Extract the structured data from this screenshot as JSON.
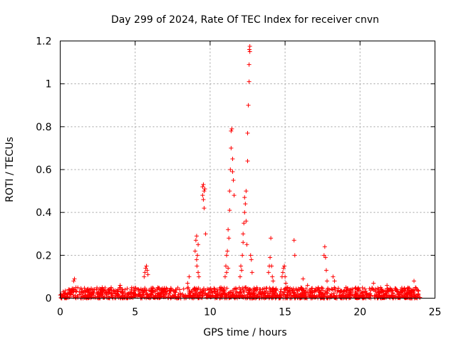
{
  "chart_data": {
    "type": "scatter",
    "title": "Day 299 of 2024, Rate Of TEC Index for receiver cnvn",
    "xlabel": "GPS time / hours",
    "ylabel": "ROTI / TECUs",
    "xlim": [
      0,
      25
    ],
    "ylim": [
      0,
      1.2
    ],
    "xticks": [
      0,
      5,
      10,
      15,
      20,
      25
    ],
    "yticks": [
      0,
      0.2,
      0.4,
      0.6,
      0.8,
      1,
      1.2
    ],
    "xtick_labels": [
      "0",
      "5",
      "10",
      "15",
      "20",
      "25"
    ],
    "ytick_labels": [
      "0",
      "0.2",
      "0.4",
      "0.6",
      "0.8",
      "1",
      "1.2"
    ],
    "grid": true,
    "legend": "none",
    "marker": "plus",
    "color": "#ff0000",
    "baseline": {
      "x_range": [
        0,
        24
      ],
      "y_range": [
        0.0,
        0.05
      ]
    },
    "series": [
      {
        "x": [
          0.9,
          0.95,
          2.8,
          3.4,
          4.0,
          5.6,
          5.65,
          5.7,
          5.75,
          5.8,
          5.85,
          8.5,
          8.6,
          9.0,
          9.05,
          9.1,
          9.1,
          9.12,
          9.15,
          9.2,
          9.2,
          9.25,
          9.5,
          9.5,
          9.55,
          9.55,
          9.6,
          9.6,
          9.65,
          9.7,
          11.0,
          11.05,
          11.1,
          11.1,
          11.15,
          11.2,
          11.2,
          11.25,
          11.3,
          11.3,
          11.35,
          11.4,
          11.4,
          11.45,
          11.5,
          11.5,
          11.55,
          11.6,
          12.0,
          12.05,
          12.1,
          12.15,
          12.2,
          12.2,
          12.25,
          12.3,
          12.3,
          12.35,
          12.4,
          12.4,
          12.45,
          12.5,
          12.5,
          12.55,
          12.6,
          12.6,
          12.62,
          12.65,
          12.65,
          12.7,
          12.75,
          12.8,
          13.9,
          13.95,
          14.0,
          14.05,
          14.1,
          14.15,
          14.2,
          14.8,
          14.85,
          14.9,
          14.95,
          15.0,
          15.05,
          15.6,
          15.65,
          16.2,
          16.5,
          17.6,
          17.65,
          17.7,
          17.75,
          17.8,
          18.2,
          18.3,
          20.9,
          21.8,
          23.6,
          23.7,
          23.8
        ],
        "y": [
          0.08,
          0.09,
          0.05,
          0.05,
          0.06,
          0.1,
          0.12,
          0.14,
          0.15,
          0.13,
          0.11,
          0.07,
          0.1,
          0.22,
          0.27,
          0.29,
          0.18,
          0.15,
          0.2,
          0.25,
          0.12,
          0.1,
          0.52,
          0.48,
          0.53,
          0.46,
          0.42,
          0.5,
          0.51,
          0.3,
          0.1,
          0.15,
          0.2,
          0.12,
          0.22,
          0.14,
          0.32,
          0.28,
          0.41,
          0.5,
          0.6,
          0.7,
          0.78,
          0.79,
          0.65,
          0.59,
          0.55,
          0.48,
          0.1,
          0.15,
          0.13,
          0.2,
          0.26,
          0.3,
          0.35,
          0.4,
          0.47,
          0.44,
          0.36,
          0.5,
          0.25,
          0.64,
          0.77,
          0.9,
          1.01,
          1.09,
          1.16,
          1.175,
          1.15,
          0.2,
          0.18,
          0.12,
          0.12,
          0.15,
          0.19,
          0.28,
          0.15,
          0.1,
          0.08,
          0.1,
          0.12,
          0.14,
          0.15,
          0.1,
          0.07,
          0.27,
          0.2,
          0.09,
          0.06,
          0.2,
          0.24,
          0.19,
          0.13,
          0.08,
          0.1,
          0.08,
          0.07,
          0.06,
          0.08,
          0.05,
          0.04
        ]
      }
    ]
  }
}
